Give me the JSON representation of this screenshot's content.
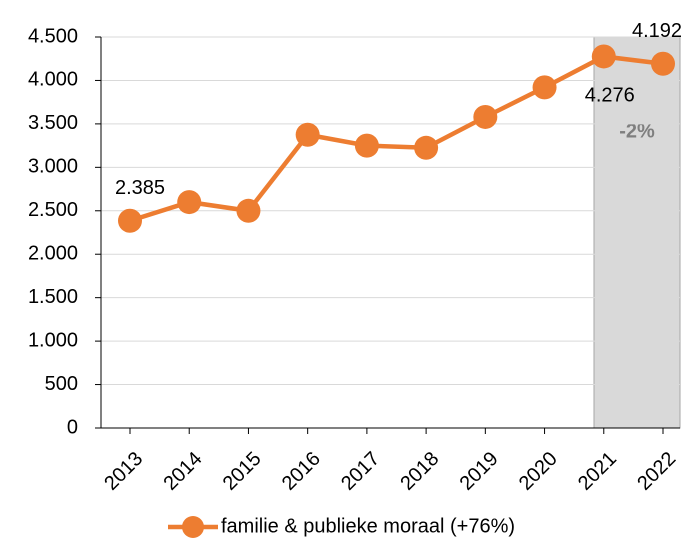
{
  "chart_data": {
    "type": "line",
    "categories": [
      "2013",
      "2014",
      "2015",
      "2016",
      "2017",
      "2018",
      "2019",
      "2020",
      "2021",
      "2022"
    ],
    "series": [
      {
        "name": "familie & publieke moraal (+76%)",
        "color": "#ed7d31",
        "values": [
          2385,
          2600,
          2500,
          3375,
          3250,
          3225,
          3580,
          3920,
          4276,
          4192
        ],
        "value_labels": [
          "2.385",
          null,
          null,
          null,
          null,
          null,
          null,
          null,
          "4.276",
          "4.192"
        ]
      }
    ],
    "ylim": [
      0,
      4500
    ],
    "yticks": [
      0,
      500,
      {
        "value": 1000,
        "label": "1.000"
      },
      {
        "value": 1500,
        "label": "1.500"
      },
      {
        "value": 2000,
        "label": "2.000"
      },
      {
        "value": 2500,
        "label": "2.500"
      },
      {
        "value": 3000,
        "label": "3.000"
      },
      {
        "value": 3500,
        "label": "3.500"
      },
      {
        "value": 4000,
        "label": "4.000"
      },
      {
        "value": 4500,
        "label": "4.500"
      }
    ],
    "grid": true,
    "annotations": [
      "-2%"
    ]
  }
}
